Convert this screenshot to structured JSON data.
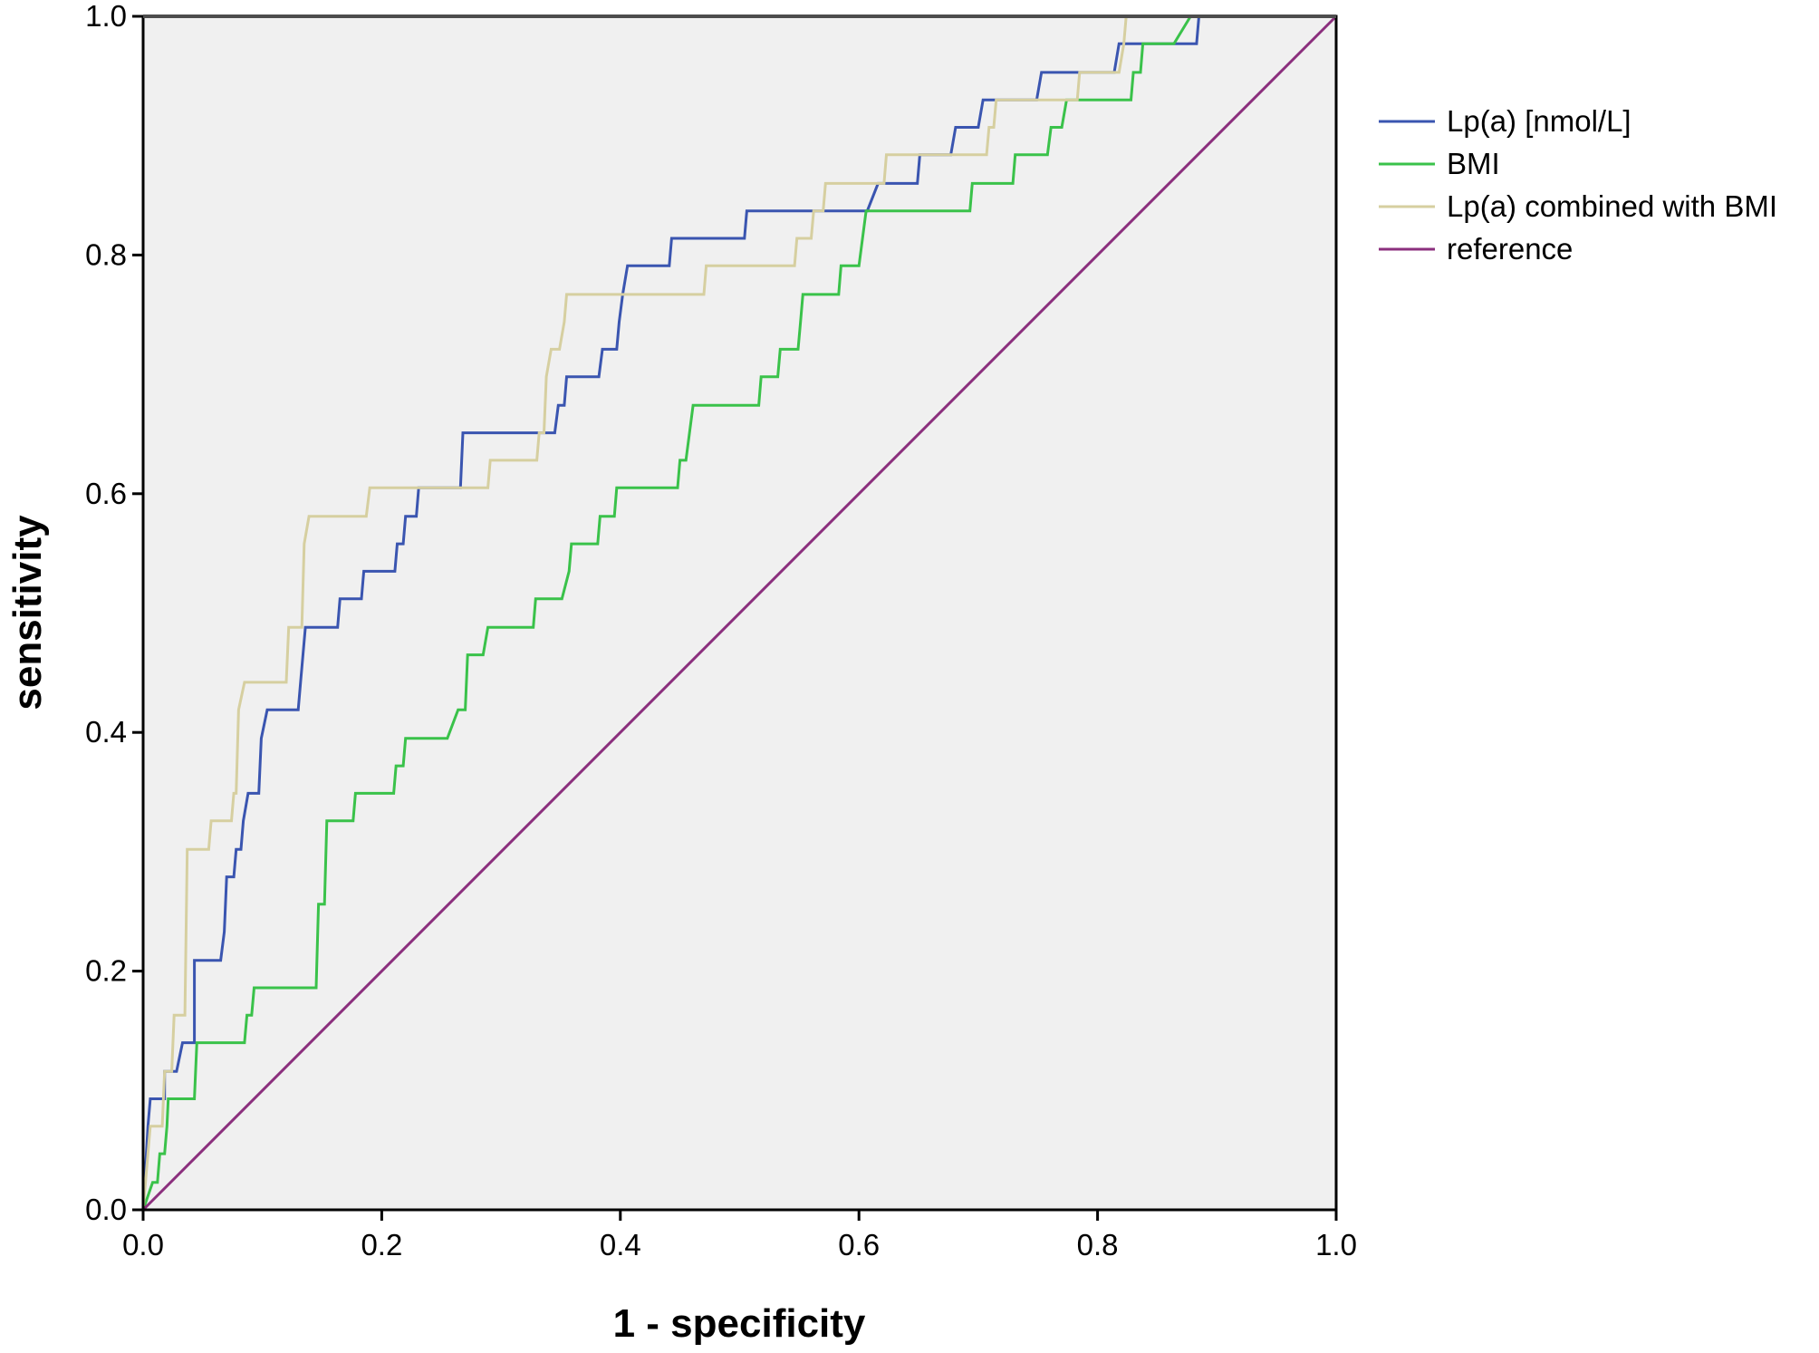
{
  "chart_data": {
    "type": "line",
    "title": "",
    "xlabel": "1 - specificity",
    "ylabel": "sensitivity",
    "xlim": [
      0.0,
      1.0
    ],
    "ylim": [
      0.0,
      1.0
    ],
    "x_ticks": [
      "0.0",
      "0.2",
      "0.4",
      "0.6",
      "0.8",
      "1.0"
    ],
    "y_ticks": [
      "0.0",
      "0.2",
      "0.4",
      "0.6",
      "0.8",
      "1.0"
    ],
    "grid": false,
    "plot_background": "#f0f0f0",
    "legend_position": "right",
    "series": [
      {
        "name": "Lp(a) [nmol/L]",
        "color": "#3a55b0",
        "points": [
          [
            0,
            0
          ],
          [
            0.004,
            0.07
          ],
          [
            0.006,
            0.093
          ],
          [
            0.018,
            0.093
          ],
          [
            0.018,
            0.116
          ],
          [
            0.028,
            0.116
          ],
          [
            0.033,
            0.14
          ],
          [
            0.043,
            0.14
          ],
          [
            0.043,
            0.209
          ],
          [
            0.065,
            0.209
          ],
          [
            0.068,
            0.233
          ],
          [
            0.07,
            0.279
          ],
          [
            0.076,
            0.279
          ],
          [
            0.078,
            0.302
          ],
          [
            0.082,
            0.302
          ],
          [
            0.084,
            0.326
          ],
          [
            0.088,
            0.349
          ],
          [
            0.097,
            0.349
          ],
          [
            0.099,
            0.395
          ],
          [
            0.104,
            0.419
          ],
          [
            0.13,
            0.419
          ],
          [
            0.132,
            0.442
          ],
          [
            0.136,
            0.488
          ],
          [
            0.163,
            0.488
          ],
          [
            0.165,
            0.512
          ],
          [
            0.183,
            0.512
          ],
          [
            0.185,
            0.535
          ],
          [
            0.211,
            0.535
          ],
          [
            0.213,
            0.558
          ],
          [
            0.218,
            0.558
          ],
          [
            0.22,
            0.581
          ],
          [
            0.229,
            0.581
          ],
          [
            0.231,
            0.605
          ],
          [
            0.266,
            0.605
          ],
          [
            0.268,
            0.651
          ],
          [
            0.345,
            0.651
          ],
          [
            0.348,
            0.674
          ],
          [
            0.353,
            0.674
          ],
          [
            0.355,
            0.698
          ],
          [
            0.382,
            0.698
          ],
          [
            0.385,
            0.721
          ],
          [
            0.397,
            0.721
          ],
          [
            0.399,
            0.744
          ],
          [
            0.402,
            0.767
          ],
          [
            0.406,
            0.791
          ],
          [
            0.441,
            0.791
          ],
          [
            0.443,
            0.814
          ],
          [
            0.504,
            0.814
          ],
          [
            0.506,
            0.837
          ],
          [
            0.607,
            0.837
          ],
          [
            0.616,
            0.86
          ],
          [
            0.649,
            0.86
          ],
          [
            0.651,
            0.884
          ],
          [
            0.677,
            0.884
          ],
          [
            0.681,
            0.907
          ],
          [
            0.7,
            0.907
          ],
          [
            0.704,
            0.93
          ],
          [
            0.749,
            0.93
          ],
          [
            0.753,
            0.953
          ],
          [
            0.814,
            0.953
          ],
          [
            0.818,
            0.977
          ],
          [
            0.883,
            0.977
          ],
          [
            0.885,
            1.0
          ],
          [
            1.0,
            1.0
          ]
        ]
      },
      {
        "name": "BMI",
        "color": "#3ac24a",
        "points": [
          [
            0,
            0
          ],
          [
            0.008,
            0.023
          ],
          [
            0.012,
            0.023
          ],
          [
            0.014,
            0.047
          ],
          [
            0.018,
            0.047
          ],
          [
            0.02,
            0.07
          ],
          [
            0.021,
            0.093
          ],
          [
            0.043,
            0.093
          ],
          [
            0.045,
            0.14
          ],
          [
            0.085,
            0.14
          ],
          [
            0.087,
            0.163
          ],
          [
            0.091,
            0.163
          ],
          [
            0.093,
            0.186
          ],
          [
            0.145,
            0.186
          ],
          [
            0.147,
            0.256
          ],
          [
            0.152,
            0.256
          ],
          [
            0.154,
            0.326
          ],
          [
            0.176,
            0.326
          ],
          [
            0.178,
            0.349
          ],
          [
            0.21,
            0.349
          ],
          [
            0.212,
            0.372
          ],
          [
            0.218,
            0.372
          ],
          [
            0.22,
            0.395
          ],
          [
            0.255,
            0.395
          ],
          [
            0.264,
            0.419
          ],
          [
            0.27,
            0.419
          ],
          [
            0.272,
            0.465
          ],
          [
            0.285,
            0.465
          ],
          [
            0.289,
            0.488
          ],
          [
            0.327,
            0.488
          ],
          [
            0.329,
            0.512
          ],
          [
            0.351,
            0.512
          ],
          [
            0.357,
            0.535
          ],
          [
            0.359,
            0.558
          ],
          [
            0.381,
            0.558
          ],
          [
            0.383,
            0.581
          ],
          [
            0.395,
            0.581
          ],
          [
            0.397,
            0.605
          ],
          [
            0.41,
            0.605
          ],
          [
            0.412,
            0.605
          ],
          [
            0.448,
            0.605
          ],
          [
            0.45,
            0.628
          ],
          [
            0.455,
            0.628
          ],
          [
            0.461,
            0.674
          ],
          [
            0.516,
            0.674
          ],
          [
            0.518,
            0.698
          ],
          [
            0.532,
            0.698
          ],
          [
            0.534,
            0.721
          ],
          [
            0.549,
            0.721
          ],
          [
            0.551,
            0.744
          ],
          [
            0.553,
            0.767
          ],
          [
            0.583,
            0.767
          ],
          [
            0.585,
            0.791
          ],
          [
            0.6,
            0.791
          ],
          [
            0.606,
            0.837
          ],
          [
            0.693,
            0.837
          ],
          [
            0.695,
            0.86
          ],
          [
            0.729,
            0.86
          ],
          [
            0.731,
            0.884
          ],
          [
            0.758,
            0.884
          ],
          [
            0.761,
            0.907
          ],
          [
            0.77,
            0.907
          ],
          [
            0.774,
            0.93
          ],
          [
            0.828,
            0.93
          ],
          [
            0.83,
            0.953
          ],
          [
            0.836,
            0.953
          ],
          [
            0.838,
            0.977
          ],
          [
            0.864,
            0.977
          ],
          [
            0.878,
            1.0
          ],
          [
            1.0,
            1.0
          ]
        ]
      },
      {
        "name": "Lp(a) combined with BMI",
        "color": "#d6cfa0",
        "points": [
          [
            0,
            0
          ],
          [
            0.004,
            0.047
          ],
          [
            0.006,
            0.07
          ],
          [
            0.016,
            0.07
          ],
          [
            0.018,
            0.116
          ],
          [
            0.024,
            0.116
          ],
          [
            0.026,
            0.163
          ],
          [
            0.035,
            0.163
          ],
          [
            0.037,
            0.302
          ],
          [
            0.055,
            0.302
          ],
          [
            0.057,
            0.326
          ],
          [
            0.074,
            0.326
          ],
          [
            0.076,
            0.349
          ],
          [
            0.078,
            0.349
          ],
          [
            0.08,
            0.419
          ],
          [
            0.085,
            0.442
          ],
          [
            0.12,
            0.442
          ],
          [
            0.122,
            0.488
          ],
          [
            0.133,
            0.488
          ],
          [
            0.135,
            0.558
          ],
          [
            0.139,
            0.581
          ],
          [
            0.187,
            0.581
          ],
          [
            0.19,
            0.605
          ],
          [
            0.289,
            0.605
          ],
          [
            0.291,
            0.628
          ],
          [
            0.33,
            0.628
          ],
          [
            0.332,
            0.651
          ],
          [
            0.336,
            0.651
          ],
          [
            0.338,
            0.698
          ],
          [
            0.342,
            0.721
          ],
          [
            0.349,
            0.721
          ],
          [
            0.353,
            0.744
          ],
          [
            0.355,
            0.767
          ],
          [
            0.47,
            0.767
          ],
          [
            0.472,
            0.791
          ],
          [
            0.546,
            0.791
          ],
          [
            0.548,
            0.814
          ],
          [
            0.56,
            0.814
          ],
          [
            0.562,
            0.837
          ],
          [
            0.57,
            0.837
          ],
          [
            0.572,
            0.86
          ],
          [
            0.621,
            0.86
          ],
          [
            0.623,
            0.884
          ],
          [
            0.707,
            0.884
          ],
          [
            0.709,
            0.907
          ],
          [
            0.713,
            0.907
          ],
          [
            0.715,
            0.93
          ],
          [
            0.783,
            0.93
          ],
          [
            0.785,
            0.953
          ],
          [
            0.818,
            0.953
          ],
          [
            0.822,
            0.977
          ],
          [
            0.824,
            1.0
          ],
          [
            1.0,
            1.0
          ]
        ]
      },
      {
        "name": "reference",
        "color": "#8b2f7d",
        "points": [
          [
            0,
            0
          ],
          [
            1,
            1
          ]
        ]
      }
    ]
  }
}
